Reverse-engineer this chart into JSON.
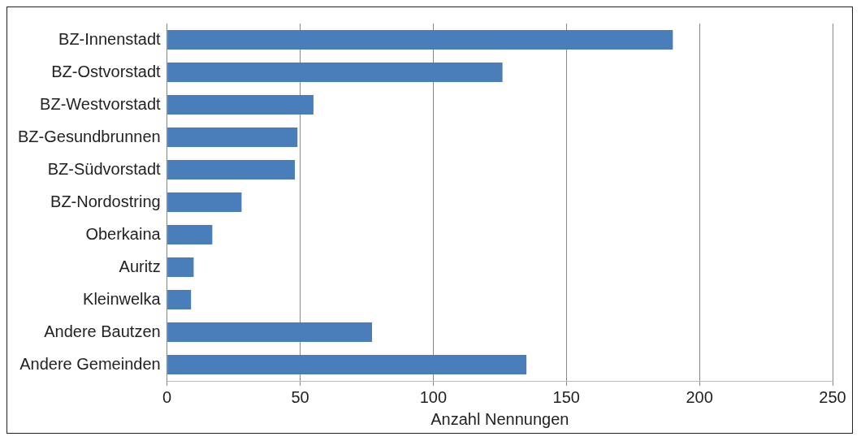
{
  "chart_data": {
    "type": "bar",
    "orientation": "horizontal",
    "xlabel": "Anzahl Nennungen",
    "categories": [
      "BZ-Innenstadt",
      "BZ-Ostvorstadt",
      "BZ-Westvorstadt",
      "BZ-Gesundbrunnen",
      "BZ-Südvorstadt",
      "BZ-Nordostring",
      "Oberkaina",
      "Auritz",
      "Kleinwelka",
      "Andere Bautzen",
      "Andere Gemeinden"
    ],
    "values": [
      190,
      126,
      55,
      49,
      48,
      28,
      17,
      10,
      9,
      77,
      135
    ],
    "color": "#4a7ebb",
    "xlim": [
      0,
      250
    ],
    "xticks": [
      0,
      50,
      100,
      150,
      200,
      250
    ],
    "grid": "x",
    "legend": false
  }
}
